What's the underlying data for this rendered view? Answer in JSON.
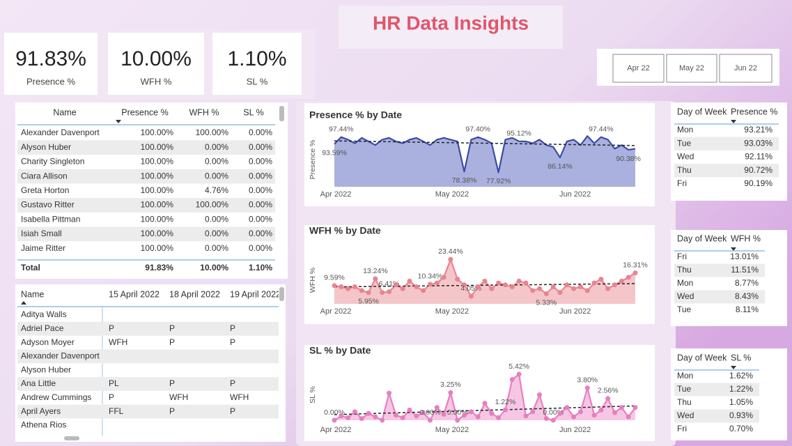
{
  "header": {
    "title": "HR Data Insights"
  },
  "kpis": [
    {
      "value": "91.83%",
      "label": "Presence %"
    },
    {
      "value": "10.00%",
      "label": "WFH %"
    },
    {
      "value": "1.10%",
      "label": "SL %"
    }
  ],
  "slicer": {
    "options": [
      "Apr 22",
      "May 22",
      "Jun 22"
    ]
  },
  "summary_table": {
    "columns": [
      "Name",
      "Presence %",
      "WFH %",
      "SL %"
    ],
    "rows": [
      [
        "Alexander Davenport",
        "100.00%",
        "100.00%",
        "0.00%"
      ],
      [
        "Alyson Huber",
        "100.00%",
        "0.00%",
        "0.00%"
      ],
      [
        "Charity Singleton",
        "100.00%",
        "0.00%",
        "0.00%"
      ],
      [
        "Ciara Allison",
        "100.00%",
        "0.00%",
        "0.00%"
      ],
      [
        "Greta Horton",
        "100.00%",
        "4.76%",
        "0.00%"
      ],
      [
        "Gustavo Ritter",
        "100.00%",
        "100.00%",
        "0.00%"
      ],
      [
        "Isabella Pittman",
        "100.00%",
        "0.00%",
        "0.00%"
      ],
      [
        "Isiah Small",
        "100.00%",
        "0.00%",
        "0.00%"
      ],
      [
        "Jaime Ritter",
        "100.00%",
        "0.00%",
        "0.00%"
      ]
    ],
    "total": [
      "Total",
      "91.83%",
      "10.00%",
      "1.10%"
    ]
  },
  "attendance_table": {
    "columns": [
      "Name",
      "15 April 2022",
      "18 April 2022",
      "19 April 2022"
    ],
    "rows": [
      [
        "Aditya Walls",
        null,
        null,
        null
      ],
      [
        "Adriel Pace",
        "P",
        "P",
        "P"
      ],
      [
        "Adyson Moyer",
        "WFH",
        "P",
        "P"
      ],
      [
        "Alexander Davenport",
        null,
        null,
        null
      ],
      [
        "Alyson Huber",
        null,
        null,
        null
      ],
      [
        "Ana Little",
        "PL",
        "P",
        "P"
      ],
      [
        "Andrew Cummings",
        "P",
        "WFH",
        "WFH"
      ],
      [
        "April Ayers",
        "FFL",
        "P",
        "P"
      ],
      [
        "Athena Rios",
        null,
        null,
        null
      ]
    ]
  },
  "day_tables": [
    {
      "columns": [
        "Day of Week",
        "Presence %"
      ],
      "rows": [
        [
          "Mon",
          "93.21%"
        ],
        [
          "Tue",
          "93.03%"
        ],
        [
          "Wed",
          "92.11%"
        ],
        [
          "Thu",
          "90.72%"
        ],
        [
          "Fri",
          "90.19%"
        ]
      ]
    },
    {
      "columns": [
        "Day of Week",
        "WFH %"
      ],
      "rows": [
        [
          "Fri",
          "13.01%"
        ],
        [
          "Thu",
          "11.51%"
        ],
        [
          "Mon",
          "8.77%"
        ],
        [
          "Wed",
          "8.43%"
        ],
        [
          "Tue",
          "8.11%"
        ]
      ]
    },
    {
      "columns": [
        "Day of Week",
        "SL %"
      ],
      "rows": [
        [
          "Mon",
          "1.62%"
        ],
        [
          "Tue",
          "1.22%"
        ],
        [
          "Thu",
          "1.05%"
        ],
        [
          "Wed",
          "0.93%"
        ],
        [
          "Fri",
          "0.70%"
        ]
      ]
    }
  ],
  "chart_data": [
    {
      "type": "area",
      "title": "Presence % by Date",
      "ylabel": "Presence %",
      "color": "#3b4ba6",
      "fill": "#aab1de",
      "markers": false,
      "trendline": true,
      "values": [
        93.59,
        97.44,
        96,
        94,
        97,
        95,
        93,
        96,
        97,
        95,
        94,
        96,
        97,
        95,
        93,
        96,
        97,
        96,
        95,
        78.38,
        96,
        97.4,
        96,
        94,
        77.92,
        96,
        97,
        95.12,
        95,
        94,
        96,
        93,
        92,
        86.14,
        95,
        96,
        93,
        98,
        94,
        97.44,
        96,
        91,
        93,
        90.38,
        91
      ],
      "value_labels": [
        "93.59%",
        "97.44%",
        null,
        null,
        null,
        null,
        null,
        null,
        null,
        null,
        null,
        null,
        null,
        null,
        null,
        null,
        null,
        null,
        null,
        "78.38%",
        null,
        "97.40%",
        null,
        null,
        "77.92%",
        null,
        null,
        "95.12%",
        null,
        null,
        null,
        null,
        null,
        "86.14%",
        null,
        null,
        null,
        null,
        null,
        "97.44%",
        null,
        null,
        null,
        "90.38%",
        null
      ],
      "xlim": [
        0,
        44
      ],
      "ylim": [
        70,
        100
      ],
      "xticks": [
        {
          "value": 0,
          "label": "Apr 2022"
        },
        {
          "value": 17,
          "label": "May 2022"
        },
        {
          "value": 35,
          "label": "Jun 2022"
        }
      ]
    },
    {
      "type": "area",
      "title": "WFH % by Date",
      "ylabel": "WFH %",
      "color": "#e8848f",
      "fill": "#f4c6ca",
      "markers": true,
      "trendline": true,
      "values": [
        9.59,
        9,
        8,
        9,
        7,
        5.95,
        13.24,
        6,
        6.41,
        10,
        8,
        12,
        9,
        7,
        10.34,
        11,
        14,
        23.44,
        13,
        10,
        4.05,
        9,
        12,
        8,
        11,
        10,
        9,
        12,
        11,
        7,
        8,
        5.33,
        9,
        6,
        10,
        8,
        9,
        7,
        11,
        13,
        8,
        10,
        12,
        14,
        16.31
      ],
      "value_labels": [
        "9.59%",
        null,
        null,
        null,
        null,
        "5.95%",
        "13.24%",
        null,
        "6.41%",
        null,
        null,
        null,
        null,
        null,
        "10.34%",
        null,
        null,
        "23.44%",
        null,
        null,
        "4.05%",
        null,
        null,
        null,
        null,
        null,
        null,
        null,
        null,
        null,
        null,
        "5.33%",
        null,
        null,
        null,
        null,
        null,
        null,
        null,
        null,
        null,
        null,
        null,
        null,
        "16.31%"
      ],
      "xlim": [
        0,
        44
      ],
      "ylim": [
        0,
        25
      ],
      "xticks": [
        {
          "value": 0,
          "label": "Apr 2022"
        },
        {
          "value": 17,
          "label": "May 2022"
        },
        {
          "value": 35,
          "label": "Jun 2022"
        }
      ]
    },
    {
      "type": "area",
      "title": "SL % by Date",
      "ylabel": "SL %",
      "color": "#e67fc0",
      "fill": "#f6c7e5",
      "markers": true,
      "trendline": true,
      "values": [
        0,
        0.5,
        0.3,
        1,
        0.2,
        0.8,
        0.4,
        0,
        3.2,
        0.6,
        0.3,
        1.2,
        0.5,
        0.9,
        0,
        1.5,
        0.7,
        3.25,
        0,
        0.6,
        1,
        0.4,
        2,
        0.8,
        0.3,
        1.22,
        4.8,
        5.42,
        0.5,
        1,
        3,
        0.2,
        0,
        0.8,
        1.5,
        0.4,
        1,
        3.8,
        0.6,
        1.2,
        2.56,
        0.9,
        1.5,
        0.4,
        1.5
      ],
      "value_labels": [
        "0.00%",
        null,
        null,
        null,
        null,
        null,
        null,
        null,
        null,
        null,
        null,
        null,
        null,
        null,
        "0.00%",
        null,
        null,
        "3.25%",
        "0.00%",
        null,
        null,
        null,
        null,
        null,
        null,
        "1.22%",
        null,
        "5.42%",
        null,
        null,
        null,
        null,
        "0.00%",
        null,
        null,
        null,
        null,
        "3.80%",
        null,
        null,
        "2.56%",
        null,
        null,
        null,
        null
      ],
      "xlim": [
        0,
        44
      ],
      "ylim": [
        0,
        6
      ],
      "xticks": [
        {
          "value": 0,
          "label": "Apr 2022"
        },
        {
          "value": 17,
          "label": "May 2022"
        },
        {
          "value": 35,
          "label": "Jun 2022"
        }
      ]
    }
  ]
}
